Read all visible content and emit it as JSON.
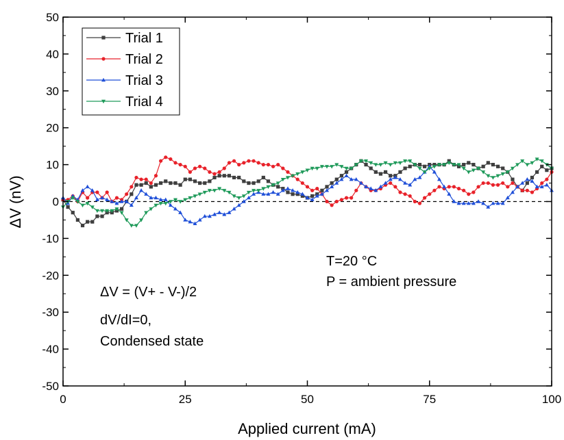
{
  "chart_data": {
    "type": "line",
    "title": "",
    "xlabel": "Applied current (mA)",
    "ylabel": "ΔV (nV)",
    "xlim": [
      0,
      100
    ],
    "ylim": [
      -50,
      50
    ],
    "xticks": [
      0,
      25,
      50,
      75,
      100
    ],
    "yticks": [
      -50,
      -40,
      -30,
      -20,
      -10,
      0,
      10,
      20,
      30,
      40,
      50
    ],
    "grid": false,
    "legend_position": "top-left",
    "reference_line": {
      "y": 0,
      "style": "dashed"
    },
    "annotations": [
      "T=20 °C",
      "P = ambient pressure",
      "ΔV = (V+ - V-)/2",
      "dV/dI=0,",
      "Condensed state"
    ],
    "series": [
      {
        "name": "Trial 1",
        "color": "#3f3f3f",
        "marker": "square",
        "x": [
          0,
          1,
          2,
          3,
          4,
          5,
          6,
          7,
          8,
          9,
          10,
          11,
          12,
          13,
          14,
          15,
          16,
          17,
          18,
          19,
          20,
          21,
          22,
          23,
          24,
          25,
          26,
          27,
          28,
          29,
          30,
          31,
          32,
          33,
          34,
          35,
          36,
          37,
          38,
          39,
          40,
          41,
          42,
          43,
          44,
          45,
          46,
          47,
          48,
          49,
          50,
          51,
          52,
          53,
          54,
          55,
          56,
          57,
          58,
          59,
          60,
          61,
          62,
          63,
          64,
          65,
          66,
          67,
          68,
          69,
          70,
          71,
          72,
          73,
          74,
          75,
          76,
          77,
          78,
          79,
          80,
          81,
          82,
          83,
          84,
          85,
          86,
          87,
          88,
          89,
          90,
          91,
          92,
          93,
          94,
          95,
          96,
          97,
          98,
          99,
          100
        ],
        "values": [
          0.5,
          -1.5,
          -3,
          -5,
          -6.5,
          -5.5,
          -5.5,
          -4,
          -4,
          -3,
          -3,
          -2.5,
          -2,
          0,
          2,
          4.5,
          4.5,
          5,
          4,
          4.5,
          5,
          5.5,
          5,
          5,
          4.5,
          6,
          6,
          5.5,
          5,
          5,
          5.5,
          6.5,
          7,
          7,
          7,
          6.5,
          6.5,
          5.5,
          5,
          5,
          5.5,
          6.5,
          5.5,
          4.5,
          4,
          3.5,
          2.5,
          2,
          2,
          1.5,
          1,
          1.5,
          2,
          3,
          4,
          5,
          6,
          7,
          8,
          9,
          10,
          11,
          10,
          9,
          8,
          7.5,
          8,
          7,
          7,
          8,
          9,
          9.5,
          10,
          10,
          9.5,
          10,
          10,
          10,
          10,
          11,
          10,
          9.5,
          10,
          10.5,
          10,
          9,
          9.5,
          10.5,
          10,
          9.5,
          9,
          8,
          6,
          4,
          3,
          5,
          6.5,
          8,
          9.5,
          8.5,
          9
        ]
      },
      {
        "name": "Trial 2",
        "color": "#e8222a",
        "marker": "circle",
        "x": [
          0,
          1,
          2,
          3,
          4,
          5,
          6,
          7,
          8,
          9,
          10,
          11,
          12,
          13,
          14,
          15,
          16,
          17,
          18,
          19,
          20,
          21,
          22,
          23,
          24,
          25,
          26,
          27,
          28,
          29,
          30,
          31,
          32,
          33,
          34,
          35,
          36,
          37,
          38,
          39,
          40,
          41,
          42,
          43,
          44,
          45,
          46,
          47,
          48,
          49,
          50,
          51,
          52,
          53,
          54,
          55,
          56,
          57,
          58,
          59,
          60,
          61,
          62,
          63,
          64,
          65,
          66,
          67,
          68,
          69,
          70,
          71,
          72,
          73,
          74,
          75,
          76,
          77,
          78,
          79,
          80,
          81,
          82,
          83,
          84,
          85,
          86,
          87,
          88,
          89,
          90,
          91,
          92,
          93,
          94,
          95,
          96,
          97,
          98,
          99,
          100
        ],
        "values": [
          0.5,
          0.5,
          1.5,
          0,
          2.5,
          1,
          2.5,
          2.5,
          1,
          2.5,
          0,
          1,
          0.5,
          2,
          4,
          6.5,
          6,
          6,
          5,
          7,
          11,
          12,
          11.5,
          10.5,
          10,
          9.5,
          8,
          9,
          9.5,
          9,
          8,
          7.5,
          8,
          9,
          10.5,
          11,
          10,
          10.5,
          11,
          11,
          10.5,
          10,
          10,
          9.5,
          10,
          9,
          8,
          7,
          6,
          5,
          4,
          3,
          3.5,
          2,
          0,
          -1,
          0,
          0.5,
          1,
          1,
          3,
          5,
          4,
          3,
          3,
          3.5,
          4.5,
          5,
          4,
          2.5,
          2,
          1.5,
          0,
          -0.5,
          1,
          2,
          3,
          4,
          3.5,
          4,
          4,
          3.5,
          3,
          2,
          2.5,
          4,
          5,
          5,
          4.5,
          4.5,
          5,
          4,
          5,
          4,
          3,
          3,
          2.5,
          3.5,
          5,
          6,
          8
        ]
      },
      {
        "name": "Trial 3",
        "color": "#1f4fd8",
        "marker": "triangle-up",
        "x": [
          0,
          1,
          2,
          3,
          4,
          5,
          6,
          7,
          8,
          9,
          10,
          11,
          12,
          13,
          14,
          15,
          16,
          17,
          18,
          19,
          20,
          21,
          22,
          23,
          24,
          25,
          26,
          27,
          28,
          29,
          30,
          31,
          32,
          33,
          34,
          35,
          36,
          37,
          38,
          39,
          40,
          41,
          42,
          43,
          44,
          45,
          46,
          47,
          48,
          49,
          50,
          51,
          52,
          53,
          54,
          55,
          56,
          57,
          58,
          59,
          60,
          61,
          62,
          63,
          64,
          65,
          66,
          67,
          68,
          69,
          70,
          71,
          72,
          73,
          74,
          75,
          76,
          77,
          78,
          79,
          80,
          81,
          82,
          83,
          84,
          85,
          86,
          87,
          88,
          89,
          90,
          91,
          92,
          93,
          94,
          95,
          96,
          97,
          98,
          99,
          100
        ],
        "values": [
          1,
          -0.5,
          1.5,
          0.5,
          3,
          4,
          3,
          0.5,
          1,
          0.5,
          0,
          -0.5,
          0,
          0,
          -1,
          1,
          3,
          2,
          1,
          1,
          0.5,
          0.5,
          -1,
          -2,
          -3,
          -5,
          -5.5,
          -6,
          -5,
          -4,
          -4,
          -3.5,
          -3,
          -3.5,
          -3,
          -2,
          -1,
          0,
          1,
          2,
          2.5,
          2,
          2,
          2.5,
          2,
          3,
          3.5,
          3,
          2.5,
          2,
          1,
          0.5,
          1.5,
          2,
          3,
          4,
          5,
          6,
          7,
          6,
          6,
          5,
          4,
          3.5,
          3,
          4,
          5,
          6,
          6.5,
          6,
          5,
          4.5,
          6,
          6.5,
          8,
          9.5,
          8,
          6,
          4,
          2,
          0,
          -0.5,
          -0.5,
          -0.5,
          -0.5,
          0,
          -0.5,
          -1.5,
          -0.5,
          -0.5,
          -0.5,
          1,
          2.5,
          4,
          5,
          6,
          5.5,
          4,
          4,
          4.5,
          3
        ]
      },
      {
        "name": "Trial 4",
        "color": "#1f9a5a",
        "marker": "triangle-down",
        "x": [
          0,
          1,
          2,
          3,
          4,
          5,
          6,
          7,
          8,
          9,
          10,
          11,
          12,
          13,
          14,
          15,
          16,
          17,
          18,
          19,
          20,
          21,
          22,
          23,
          24,
          25,
          26,
          27,
          28,
          29,
          30,
          31,
          32,
          33,
          34,
          35,
          36,
          37,
          38,
          39,
          40,
          41,
          42,
          43,
          44,
          45,
          46,
          47,
          48,
          49,
          50,
          51,
          52,
          53,
          54,
          55,
          56,
          57,
          58,
          59,
          60,
          61,
          62,
          63,
          64,
          65,
          66,
          67,
          68,
          69,
          70,
          71,
          72,
          73,
          74,
          75,
          76,
          77,
          78,
          79,
          80,
          81,
          82,
          83,
          84,
          85,
          86,
          87,
          88,
          89,
          90,
          91,
          92,
          93,
          94,
          95,
          96,
          97,
          98,
          99,
          100
        ],
        "values": [
          -1.5,
          0,
          1,
          0,
          -1,
          -0.5,
          -1.5,
          -2.5,
          -2.5,
          -2.5,
          -2.5,
          -2,
          -3,
          -5,
          -6.5,
          -6.5,
          -5,
          -3,
          -2,
          -1,
          -0.5,
          -0.5,
          0,
          0.5,
          0,
          0.5,
          1,
          1.5,
          2,
          2.5,
          3,
          3,
          3.5,
          3,
          2.5,
          1.5,
          1,
          1.5,
          2.5,
          3,
          3,
          3.5,
          4,
          4.5,
          5,
          6,
          6.5,
          7,
          7.5,
          8,
          8.5,
          9,
          9,
          9.5,
          9.5,
          9.5,
          10,
          9.5,
          9,
          9,
          10,
          11,
          11,
          10.5,
          10,
          10,
          10.5,
          10,
          10.5,
          10.5,
          11,
          11,
          10,
          9,
          8,
          9,
          9.5,
          10,
          10,
          10.5,
          10,
          10,
          9,
          8,
          8.5,
          9,
          8,
          7,
          6.5,
          7,
          7.5,
          8,
          9,
          10,
          11,
          10,
          10.5,
          11.5,
          11,
          10,
          9
        ]
      }
    ]
  }
}
